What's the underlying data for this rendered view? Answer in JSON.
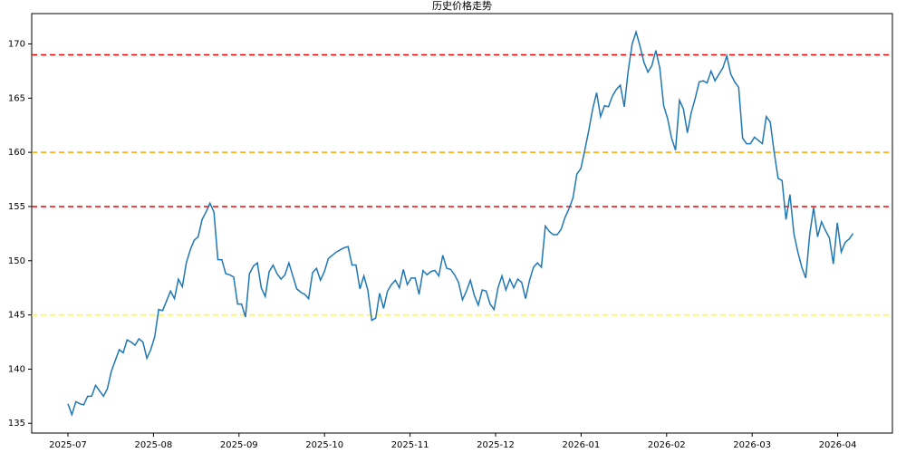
{
  "chart_data": {
    "type": "line",
    "title": "历史价格走势",
    "xticks": [
      "2025-07",
      "2025-08",
      "2025-09",
      "2025-10",
      "2025-11",
      "2025-12",
      "2026-01",
      "2026-02",
      "2026-03",
      "2026-04"
    ],
    "ylim": [
      134.1,
      172.8
    ],
    "yticks": [
      135,
      140,
      145,
      150,
      155,
      160,
      165,
      170
    ],
    "hlines": [
      {
        "value": 169,
        "color": "#ff0000"
      },
      {
        "value": 160,
        "color": "#ffa500"
      },
      {
        "value": 155,
        "color": "#ff0000"
      },
      {
        "value": 145,
        "color": "#ffff00"
      }
    ],
    "series": [
      {
        "color": "#1f77b4",
        "values": [
          136.8,
          135.8,
          137,
          136.8,
          136.7,
          137.5,
          137.5,
          138.5,
          138,
          137.5,
          138.2,
          139.8,
          140.8,
          141.8,
          141.5,
          142.7,
          142.5,
          142.2,
          142.8,
          142.5,
          141,
          141.8,
          143,
          145.5,
          145.4,
          146.3,
          147.2,
          146.5,
          148.3,
          147.6,
          149.8,
          151,
          151.9,
          152.2,
          153.8,
          154.5,
          155.3,
          154.5,
          150.1,
          150.1,
          148.8,
          148.7,
          148.5,
          146,
          146,
          144.8,
          148.8,
          149.5,
          149.8,
          147.5,
          146.7,
          149,
          149.6,
          148.8,
          148.3,
          148.7,
          149.8,
          148.6,
          147.4,
          147.1,
          146.9,
          146.5,
          148.9,
          149.3,
          148.2,
          149,
          150.2,
          150.5,
          150.8,
          151,
          151.2,
          151.3,
          149.6,
          149.6,
          147.4,
          148.6,
          147.3,
          144.5,
          144.7,
          147,
          145.6,
          147.2,
          147.8,
          148.2,
          147.5,
          149.2,
          147.8,
          148.4,
          148.4,
          146.9,
          149.1,
          148.7,
          149,
          149.1,
          148.6,
          150.5,
          149.3,
          149.2,
          148.7,
          148,
          146.4,
          147.2,
          148.2,
          146.8,
          145.9,
          147.3,
          147.2,
          146,
          145.5,
          147.5,
          148.6,
          147.3,
          148.3,
          147.5,
          148.3,
          148,
          146.5,
          148.2,
          149.4,
          149.8,
          149.4,
          153.2,
          152.7,
          152.4,
          152.4,
          152.9,
          154,
          154.8,
          155.8,
          158,
          158.5,
          160.2,
          162,
          164,
          165.5,
          163.3,
          164.3,
          164.2,
          165.2,
          165.8,
          166.2,
          164.2,
          167.5,
          170,
          171.1,
          169.8,
          168.3,
          167.4,
          168,
          169.4,
          167.8,
          164.3,
          163.1,
          161.3,
          160.2,
          164.8,
          164,
          161.8,
          163.7,
          165,
          166.5,
          166.6,
          166.4,
          167.5,
          166.6,
          167.2,
          167.8,
          168.9,
          167.2,
          166.5,
          166,
          161.3,
          160.8,
          160.8,
          161.4,
          161.1,
          160.8,
          163.3,
          162.8,
          160,
          157.6,
          157.4,
          153.8,
          156.1,
          152.5,
          150.8,
          149.4,
          148.4,
          152.4,
          154.9,
          152.2,
          153.6,
          152.8,
          152.1,
          149.7,
          153.5,
          150.8,
          151.7,
          152,
          152.5
        ]
      }
    ]
  }
}
